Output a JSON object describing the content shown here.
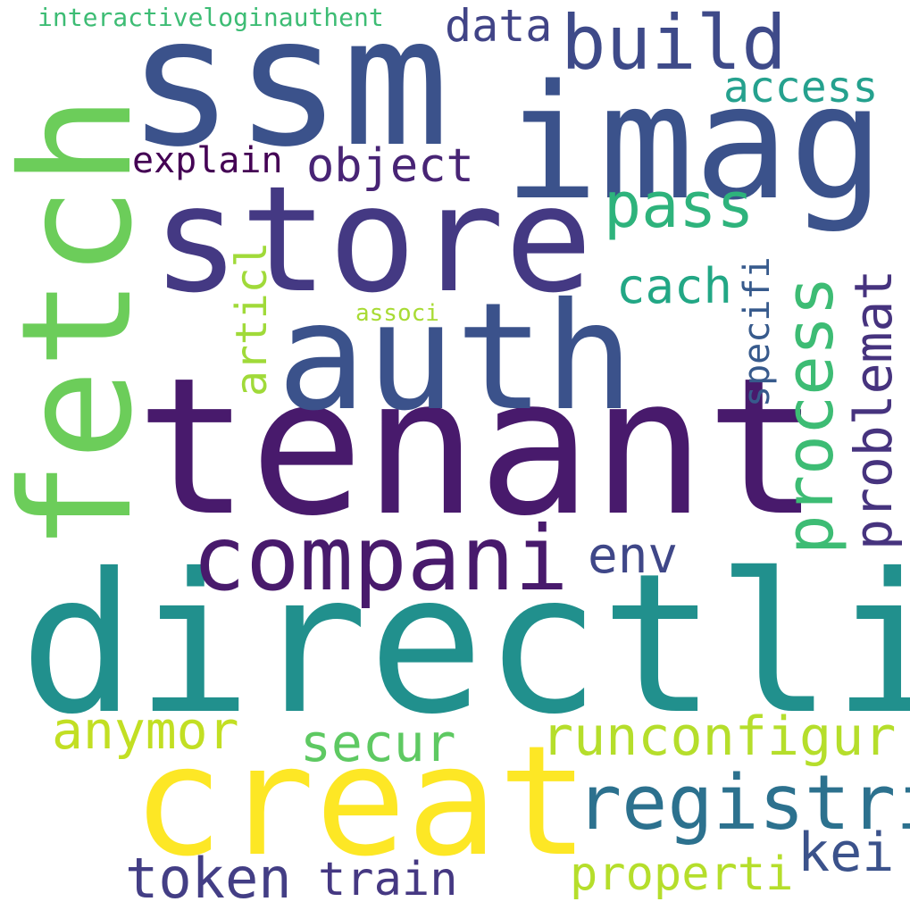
{
  "words": [
    {
      "id": "directli",
      "text": "directli",
      "color": "#21908d"
    },
    {
      "id": "tenant",
      "text": "tenant",
      "color": "#481a6c"
    },
    {
      "id": "ssm",
      "text": "ssm",
      "color": "#3b528b"
    },
    {
      "id": "imag",
      "text": "imag",
      "color": "#3b528b"
    },
    {
      "id": "store",
      "text": "store",
      "color": "#443983"
    },
    {
      "id": "auth",
      "text": "auth",
      "color": "#3b528b"
    },
    {
      "id": "fetch",
      "text": "fetch",
      "color": "#6ccd5a"
    },
    {
      "id": "creat",
      "text": "creat",
      "color": "#fde725"
    },
    {
      "id": "compani",
      "text": "compani",
      "color": "#481a6c"
    },
    {
      "id": "build",
      "text": "build",
      "color": "#3e4a89"
    },
    {
      "id": "registri",
      "text": "registri",
      "color": "#2c718e"
    },
    {
      "id": "runconfigur",
      "text": "runconfigur",
      "color": "#b5de2b"
    },
    {
      "id": "process",
      "text": "process",
      "color": "#3dbc74"
    },
    {
      "id": "problemat",
      "text": "problemat",
      "color": "#46337e"
    },
    {
      "id": "pass",
      "text": "pass",
      "color": "#2eb37c"
    },
    {
      "id": "object",
      "text": "object",
      "color": "#482475"
    },
    {
      "id": "token",
      "text": "token",
      "color": "#433e85"
    },
    {
      "id": "anymor",
      "text": "anymor",
      "color": "#c2df23"
    },
    {
      "id": "secur",
      "text": "secur",
      "color": "#5ec962"
    },
    {
      "id": "train",
      "text": "train",
      "color": "#453882"
    },
    {
      "id": "properti",
      "text": "properti",
      "color": "#b5de2b"
    },
    {
      "id": "kei",
      "text": "kei",
      "color": "#3b528b"
    },
    {
      "id": "env",
      "text": "env",
      "color": "#3f4788"
    },
    {
      "id": "explain",
      "text": "explain",
      "color": "#440154"
    },
    {
      "id": "access",
      "text": "access",
      "color": "#25a18e"
    },
    {
      "id": "cach",
      "text": "cach",
      "color": "#22a785"
    },
    {
      "id": "data",
      "text": "data",
      "color": "#414487"
    },
    {
      "id": "articl",
      "text": "articl",
      "color": "#a0da39"
    },
    {
      "id": "specifi",
      "text": "specifi",
      "color": "#375a8c"
    },
    {
      "id": "interactiveloginauthent",
      "text": "interactiveloginauthent",
      "color": "#3dbc74"
    },
    {
      "id": "associ",
      "text": "associ",
      "color": "#a8db34"
    }
  ]
}
